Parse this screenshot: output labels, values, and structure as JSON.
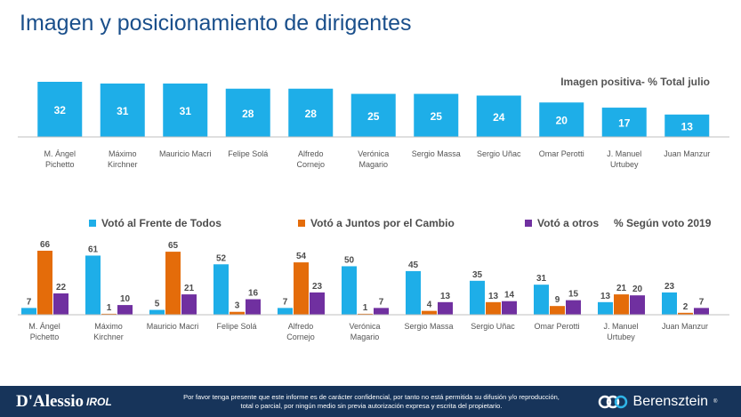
{
  "title": "Imagen y posicionamiento de dirigentes",
  "chart1_note": "Imagen positiva- % Total julio",
  "chart2_note": "% Según voto 2019",
  "colors": {
    "blue": "#1eaee8",
    "orange": "#e46c0a",
    "purple": "#7030a0",
    "title": "#1a4f8b",
    "footer": "#17345a"
  },
  "chart_data": [
    {
      "type": "bar",
      "title": "Imagen positiva- % Total julio",
      "categories": [
        "M. Ángel Pichetto",
        "Máximo Kirchner",
        "Mauricio Macri",
        "Felipe Solá",
        "Alfredo Cornejo",
        "Verónica Magario",
        "Sergio Massa",
        "Sergio Uñac",
        "Omar Perotti",
        "J. Manuel Urtubey",
        "Juan Manzur"
      ],
      "values": [
        32,
        31,
        31,
        28,
        28,
        25,
        25,
        24,
        20,
        17,
        13
      ],
      "ylim": [
        0,
        32
      ]
    },
    {
      "type": "bar",
      "title": "% Según voto 2019",
      "categories": [
        "M. Ángel Pichetto",
        "Máximo Kirchner",
        "Mauricio Macri",
        "Felipe Solá",
        "Alfredo Cornejo",
        "Verónica Magario",
        "Sergio Massa",
        "Sergio Uñac",
        "Omar Perotti",
        "J. Manuel Urtubey",
        "Juan Manzur"
      ],
      "series": [
        {
          "name": "Votó al Frente de Todos",
          "values": [
            7,
            61,
            5,
            52,
            7,
            50,
            45,
            35,
            31,
            13,
            23
          ]
        },
        {
          "name": "Votó a Juntos por el Cambio",
          "values": [
            66,
            1,
            65,
            3,
            54,
            1,
            4,
            13,
            9,
            21,
            2
          ]
        },
        {
          "name": "Votó a otros",
          "values": [
            22,
            10,
            21,
            16,
            23,
            7,
            13,
            14,
            15,
            20,
            7
          ]
        }
      ],
      "legend": "top",
      "ylim": [
        0,
        66
      ]
    }
  ],
  "footer": {
    "left_brand": "D'Alessio",
    "left_brand_sub": "IROL",
    "notice": "Por favor tenga presente que este informe es de carácter confidencial, por tanto no está permitida su difusión y/o reproducción, total o parcial, por ningún medio sin previa autorización expresa y escrita del propietario.",
    "right_brand": "Berensztein",
    "registered": "®"
  }
}
